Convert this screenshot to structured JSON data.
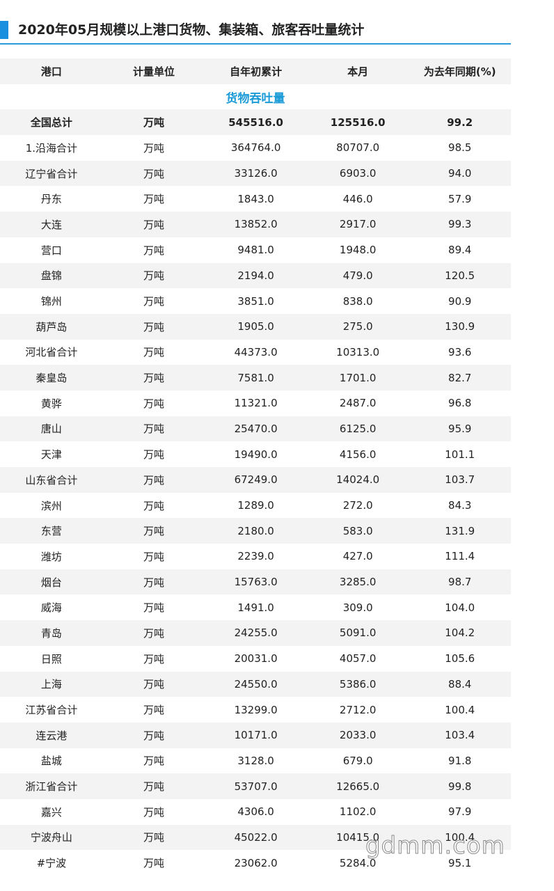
{
  "header": {
    "title": "2020年05月规模以上港口货物、集装箱、旅客吞吐量统计"
  },
  "table": {
    "headers": [
      "港口",
      "计量单位",
      "自年初累计",
      "本月",
      "为去年同期(%)"
    ],
    "section": "货物吞吐量",
    "rows": [
      [
        "全国总计",
        "万吨",
        "545516.0",
        "125516.0",
        "99.2"
      ],
      [
        "1.沿海合计",
        "万吨",
        "364764.0",
        "80707.0",
        "98.5"
      ],
      [
        "辽宁省合计",
        "万吨",
        "33126.0",
        "6903.0",
        "94.0"
      ],
      [
        "丹东",
        "万吨",
        "1843.0",
        "446.0",
        "57.9"
      ],
      [
        "大连",
        "万吨",
        "13852.0",
        "2917.0",
        "99.3"
      ],
      [
        "营口",
        "万吨",
        "9481.0",
        "1948.0",
        "89.4"
      ],
      [
        "盘锦",
        "万吨",
        "2194.0",
        "479.0",
        "120.5"
      ],
      [
        "锦州",
        "万吨",
        "3851.0",
        "838.0",
        "90.9"
      ],
      [
        "葫芦岛",
        "万吨",
        "1905.0",
        "275.0",
        "130.9"
      ],
      [
        "河北省合计",
        "万吨",
        "44373.0",
        "10313.0",
        "93.6"
      ],
      [
        "秦皇岛",
        "万吨",
        "7581.0",
        "1701.0",
        "82.7"
      ],
      [
        "黄骅",
        "万吨",
        "11321.0",
        "2487.0",
        "96.8"
      ],
      [
        "唐山",
        "万吨",
        "25470.0",
        "6125.0",
        "95.9"
      ],
      [
        "天津",
        "万吨",
        "19490.0",
        "4156.0",
        "101.1"
      ],
      [
        "山东省合计",
        "万吨",
        "67249.0",
        "14024.0",
        "103.7"
      ],
      [
        "滨州",
        "万吨",
        "1289.0",
        "272.0",
        "84.3"
      ],
      [
        "东营",
        "万吨",
        "2180.0",
        "583.0",
        "131.9"
      ],
      [
        "潍坊",
        "万吨",
        "2239.0",
        "427.0",
        "111.4"
      ],
      [
        "烟台",
        "万吨",
        "15763.0",
        "3285.0",
        "98.7"
      ],
      [
        "威海",
        "万吨",
        "1491.0",
        "309.0",
        "104.0"
      ],
      [
        "青岛",
        "万吨",
        "24255.0",
        "5091.0",
        "104.2"
      ],
      [
        "日照",
        "万吨",
        "20031.0",
        "4057.0",
        "105.6"
      ],
      [
        "上海",
        "万吨",
        "24550.0",
        "5386.0",
        "88.4"
      ],
      [
        "江苏省合计",
        "万吨",
        "13299.0",
        "2712.0",
        "100.4"
      ],
      [
        "连云港",
        "万吨",
        "10171.0",
        "2033.0",
        "103.4"
      ],
      [
        "盐城",
        "万吨",
        "3128.0",
        "679.0",
        "91.8"
      ],
      [
        "浙江省合计",
        "万吨",
        "53707.0",
        "12665.0",
        "99.8"
      ],
      [
        "嘉兴",
        "万吨",
        "4306.0",
        "1102.0",
        "97.9"
      ],
      [
        "宁波舟山",
        "万吨",
        "45022.0",
        "10415.0",
        "100.4"
      ],
      [
        "#宁波",
        "万吨",
        "23062.0",
        "5284.0",
        "95.1"
      ]
    ]
  },
  "watermark": "gdmm.com"
}
